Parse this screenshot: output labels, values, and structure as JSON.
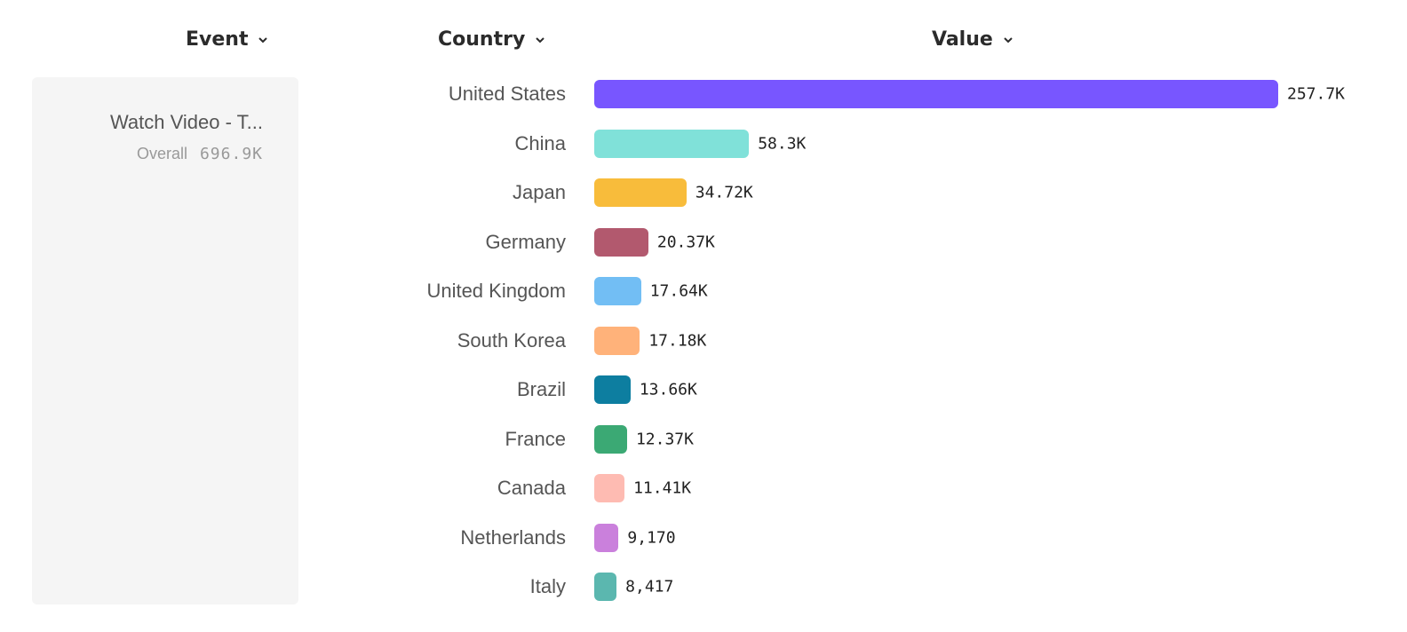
{
  "headers": {
    "event": "Event",
    "country": "Country",
    "value": "Value"
  },
  "event_panel": {
    "name": "Watch Video - T...",
    "overall_label": "Overall",
    "overall_value": "696.9K"
  },
  "chart_data": {
    "type": "bar",
    "orientation": "horizontal",
    "xlabel": "Value",
    "ylabel": "Country",
    "categories": [
      "United States",
      "China",
      "Japan",
      "Germany",
      "United Kingdom",
      "South Korea",
      "Brazil",
      "France",
      "Canada",
      "Netherlands",
      "Italy"
    ],
    "values": [
      257700,
      58300,
      34720,
      20370,
      17640,
      17180,
      13660,
      12370,
      11410,
      9170,
      8417
    ],
    "labels": [
      "257.7K",
      "58.3K",
      "34.72K",
      "20.37K",
      "17.64K",
      "17.18K",
      "13.66K",
      "12.37K",
      "11.41K",
      "9,170",
      "8,417"
    ],
    "colors": [
      "#7856FF",
      "#80E1D9",
      "#F8BC3B",
      "#B2596E",
      "#72BEF4",
      "#FFB27A",
      "#0D7EA0",
      "#3BA974",
      "#FEBBB2",
      "#CA80DC",
      "#5BB7AF"
    ],
    "grid": false
  }
}
